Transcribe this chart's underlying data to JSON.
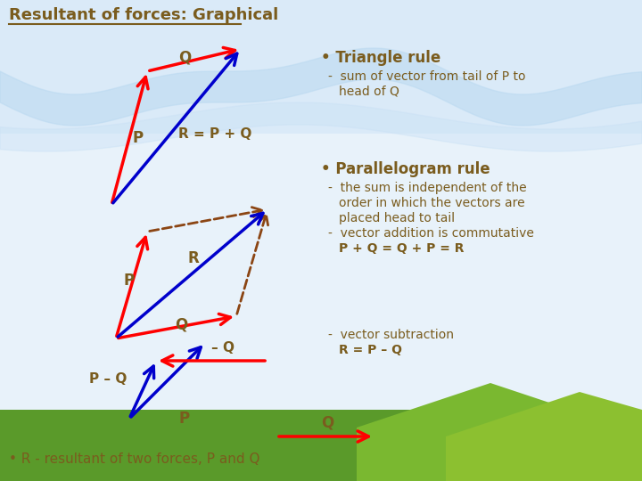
{
  "title": "Resultant of forces: Graphical",
  "bg_top": "#c8dff0",
  "bg_bottom": "#e8f0f8",
  "text_color": "#7a5c1e",
  "arrow_red": "#ff0000",
  "arrow_blue": "#0000cc",
  "arrow_brown_dashed": "#8B4513",
  "label_color": "#7a5c1e",
  "triangle_rule_text": [
    "• Triangle rule",
    "  -  sum of vector from tail of P to",
    "      head of Q"
  ],
  "parallelogram_rule_text": [
    "• Parallelogram rule",
    "  -  the sum is independent of the",
    "      order in which the vectors are",
    "      placed head to tail",
    "  -  vector addition is commutative",
    "      P + Q = Q + P = R"
  ],
  "subtraction_text": [
    "  -  vector subtraction",
    "      R = P – Q"
  ],
  "bottom_text": "• R - resultant of two forces, P and Q"
}
